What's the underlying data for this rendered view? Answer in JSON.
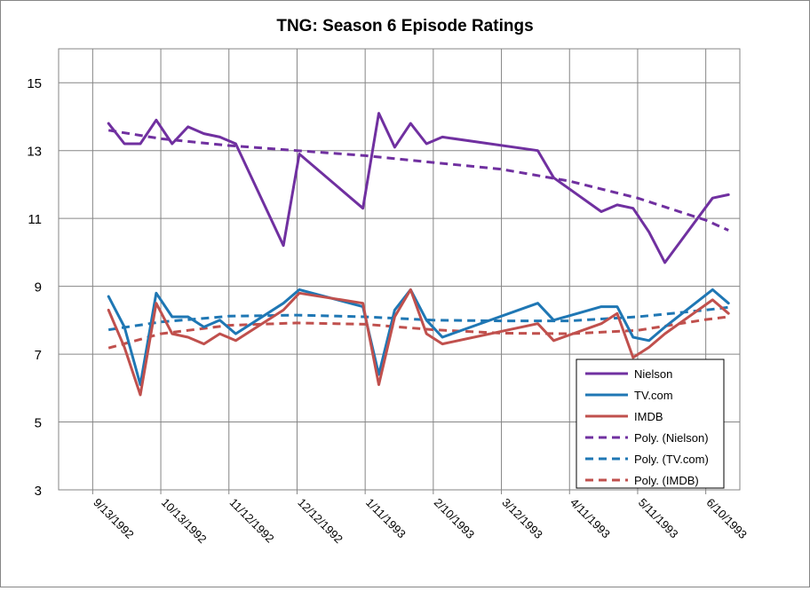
{
  "chart_data": {
    "type": "line",
    "title": "TNG: Season 6 Episode Ratings",
    "xlabel": "",
    "ylabel": "",
    "ylim": [
      3,
      16
    ],
    "yticks": [
      3,
      5,
      7,
      9,
      11,
      13,
      15
    ],
    "xlim": [
      "1992-08-29",
      "1993-06-25"
    ],
    "xticks": [
      {
        "date": "1992-09-13",
        "label": "9/13/1992"
      },
      {
        "date": "1992-10-13",
        "label": "10/13/1992"
      },
      {
        "date": "1992-11-12",
        "label": "11/12/1992"
      },
      {
        "date": "1992-12-12",
        "label": "12/12/1992"
      },
      {
        "date": "1993-01-11",
        "label": "1/11/1993"
      },
      {
        "date": "1993-02-10",
        "label": "2/10/1993"
      },
      {
        "date": "1993-03-12",
        "label": "3/12/1993"
      },
      {
        "date": "1993-04-11",
        "label": "4/11/1993"
      },
      {
        "date": "1993-05-11",
        "label": "5/11/1993"
      },
      {
        "date": "1993-06-10",
        "label": "6/10/1993"
      }
    ],
    "grid": true,
    "legend_position": "bottom-right",
    "series": [
      {
        "name": "Nielson",
        "color": "#7030a0",
        "dash": false,
        "points": [
          [
            "1992-09-20",
            13.8
          ],
          [
            "1992-09-27",
            13.2
          ],
          [
            "1992-10-04",
            13.2
          ],
          [
            "1992-10-11",
            13.9
          ],
          [
            "1992-10-18",
            13.2
          ],
          [
            "1992-10-25",
            13.7
          ],
          [
            "1992-11-01",
            13.5
          ],
          [
            "1992-11-08",
            13.4
          ],
          [
            "1992-11-15",
            13.2
          ],
          [
            "1992-12-06",
            10.2
          ],
          [
            "1992-12-13",
            12.9
          ],
          [
            "1993-01-10",
            11.3
          ],
          [
            "1993-01-17",
            14.1
          ],
          [
            "1993-01-24",
            13.1
          ],
          [
            "1993-01-31",
            13.8
          ],
          [
            "1993-02-07",
            13.2
          ],
          [
            "1993-02-14",
            13.4
          ],
          [
            "1993-03-28",
            13.0
          ],
          [
            "1993-04-04",
            12.2
          ],
          [
            "1993-04-25",
            11.2
          ],
          [
            "1993-05-02",
            11.4
          ],
          [
            "1993-05-09",
            11.3
          ],
          [
            "1993-05-16",
            10.6
          ],
          [
            "1993-05-23",
            9.7
          ],
          [
            "1993-06-13",
            11.6
          ],
          [
            "1993-06-20",
            11.7
          ]
        ]
      },
      {
        "name": "TV.com",
        "color": "#1f77b4",
        "dash": false,
        "points": [
          [
            "1992-09-20",
            8.7
          ],
          [
            "1992-09-27",
            7.8
          ],
          [
            "1992-10-04",
            6.1
          ],
          [
            "1992-10-11",
            8.8
          ],
          [
            "1992-10-18",
            8.1
          ],
          [
            "1992-10-25",
            8.1
          ],
          [
            "1992-11-01",
            7.8
          ],
          [
            "1992-11-08",
            8.0
          ],
          [
            "1992-11-15",
            7.6
          ],
          [
            "1992-12-06",
            8.5
          ],
          [
            "1992-12-13",
            8.9
          ],
          [
            "1993-01-10",
            8.4
          ],
          [
            "1993-01-17",
            6.4
          ],
          [
            "1993-01-24",
            8.3
          ],
          [
            "1993-01-31",
            8.9
          ],
          [
            "1993-02-07",
            8.0
          ],
          [
            "1993-02-14",
            7.5
          ],
          [
            "1993-03-28",
            8.5
          ],
          [
            "1993-04-04",
            8.0
          ],
          [
            "1993-04-25",
            8.4
          ],
          [
            "1993-05-02",
            8.4
          ],
          [
            "1993-05-09",
            7.5
          ],
          [
            "1993-05-16",
            7.4
          ],
          [
            "1993-05-23",
            7.8
          ],
          [
            "1993-06-13",
            8.9
          ],
          [
            "1993-06-20",
            8.5
          ]
        ]
      },
      {
        "name": "IMDB",
        "color": "#c0504d",
        "dash": false,
        "points": [
          [
            "1992-09-20",
            8.3
          ],
          [
            "1992-09-27",
            7.2
          ],
          [
            "1992-10-04",
            5.8
          ],
          [
            "1992-10-11",
            8.5
          ],
          [
            "1992-10-18",
            7.6
          ],
          [
            "1992-10-25",
            7.5
          ],
          [
            "1992-11-01",
            7.3
          ],
          [
            "1992-11-08",
            7.6
          ],
          [
            "1992-11-15",
            7.4
          ],
          [
            "1992-12-06",
            8.3
          ],
          [
            "1992-12-13",
            8.8
          ],
          [
            "1993-01-10",
            8.5
          ],
          [
            "1993-01-17",
            6.1
          ],
          [
            "1993-01-24",
            8.1
          ],
          [
            "1993-01-31",
            8.9
          ],
          [
            "1993-02-07",
            7.6
          ],
          [
            "1993-02-14",
            7.3
          ],
          [
            "1993-03-28",
            7.9
          ],
          [
            "1993-04-04",
            7.4
          ],
          [
            "1993-04-25",
            7.9
          ],
          [
            "1993-05-02",
            8.2
          ],
          [
            "1993-05-09",
            6.9
          ],
          [
            "1993-05-16",
            7.2
          ],
          [
            "1993-05-23",
            7.6
          ],
          [
            "1993-06-13",
            8.6
          ],
          [
            "1993-06-20",
            8.2
          ]
        ]
      },
      {
        "name": "Poly. (Nielson)",
        "color": "#7030a0",
        "dash": true,
        "points": [
          [
            "1992-09-20",
            13.6
          ],
          [
            "1992-10-13",
            13.35
          ],
          [
            "1992-11-12",
            13.15
          ],
          [
            "1992-12-12",
            13.0
          ],
          [
            "1993-01-11",
            12.85
          ],
          [
            "1993-02-10",
            12.65
          ],
          [
            "1993-03-12",
            12.45
          ],
          [
            "1993-04-11",
            12.1
          ],
          [
            "1993-05-11",
            11.6
          ],
          [
            "1993-06-10",
            10.95
          ],
          [
            "1993-06-20",
            10.65
          ]
        ]
      },
      {
        "name": "Poly. (TV.com)",
        "color": "#1f77b4",
        "dash": true,
        "points": [
          [
            "1992-09-20",
            7.72
          ],
          [
            "1992-10-13",
            7.95
          ],
          [
            "1992-11-12",
            8.12
          ],
          [
            "1992-12-12",
            8.15
          ],
          [
            "1993-01-11",
            8.1
          ],
          [
            "1993-02-10",
            8.0
          ],
          [
            "1993-03-12",
            7.98
          ],
          [
            "1993-04-11",
            7.98
          ],
          [
            "1993-05-11",
            8.1
          ],
          [
            "1993-06-10",
            8.3
          ],
          [
            "1993-06-20",
            8.38
          ]
        ]
      },
      {
        "name": "Poly. (IMDB)",
        "color": "#c0504d",
        "dash": true,
        "points": [
          [
            "1992-09-20",
            7.18
          ],
          [
            "1992-10-13",
            7.6
          ],
          [
            "1992-11-12",
            7.85
          ],
          [
            "1992-12-12",
            7.92
          ],
          [
            "1993-01-11",
            7.88
          ],
          [
            "1993-02-10",
            7.72
          ],
          [
            "1993-03-12",
            7.62
          ],
          [
            "1993-04-11",
            7.6
          ],
          [
            "1993-05-11",
            7.7
          ],
          [
            "1993-06-10",
            8.02
          ],
          [
            "1993-06-20",
            8.1
          ]
        ]
      }
    ]
  }
}
